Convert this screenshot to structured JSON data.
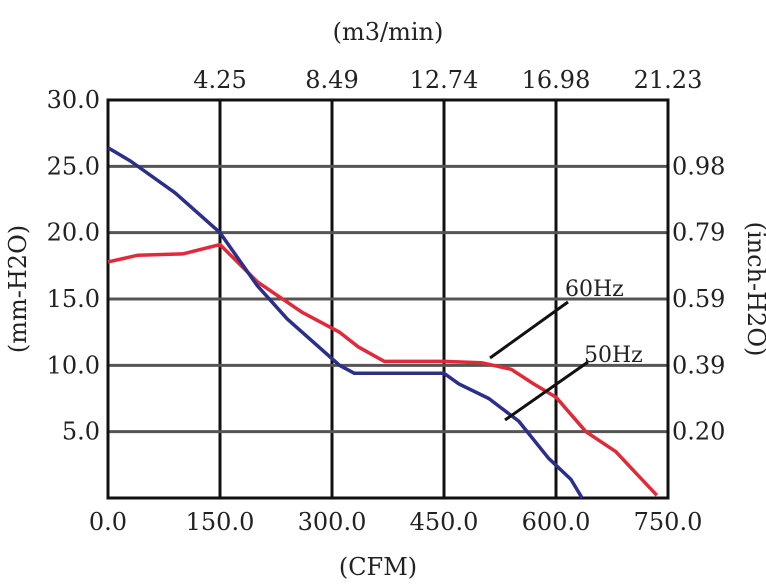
{
  "chart_data": {
    "type": "line",
    "title": "",
    "xlabel": "(CFM)",
    "ylabel": "(mm-H2O)",
    "top_axis_label": "(m3/min)",
    "right_axis_label": "(inch-H2O)",
    "xlim": [
      0,
      750
    ],
    "ylim": [
      0,
      30
    ],
    "grid": true,
    "x_ticks": [
      "0.0",
      "150.0",
      "300.0",
      "450.0",
      "600.0",
      "750.0"
    ],
    "y_ticks": [
      "5.0",
      "10.0",
      "15.0",
      "20.0",
      "25.0",
      "30.0"
    ],
    "top_ticks": [
      "4.25",
      "8.49",
      "12.74",
      "16.98",
      "21.23"
    ],
    "right_ticks": [
      "0.20",
      "0.39",
      "0.59",
      "0.79",
      "0.98"
    ],
    "colors": {
      "60Hz": "#e02a3a",
      "50Hz": "#2b2f8a"
    },
    "series": [
      {
        "name": "60Hz",
        "x": [
          0,
          40,
          100,
          150,
          200,
          260,
          310,
          335,
          370,
          400,
          450,
          500,
          540,
          570,
          600,
          640,
          680,
          735
        ],
        "y": [
          17.8,
          18.3,
          18.4,
          19.1,
          16.3,
          14.0,
          12.5,
          11.4,
          10.3,
          10.3,
          10.3,
          10.2,
          9.7,
          8.6,
          7.6,
          5.0,
          3.5,
          0.2
        ]
      },
      {
        "name": "50Hz",
        "x": [
          0,
          30,
          90,
          150,
          200,
          240,
          280,
          310,
          330,
          400,
          450,
          470,
          510,
          550,
          590,
          620,
          635
        ],
        "y": [
          26.4,
          25.4,
          23.0,
          20.0,
          16.0,
          13.5,
          11.5,
          10.0,
          9.4,
          9.4,
          9.4,
          8.6,
          7.5,
          5.8,
          3.0,
          1.4,
          0.0
        ]
      }
    ]
  }
}
